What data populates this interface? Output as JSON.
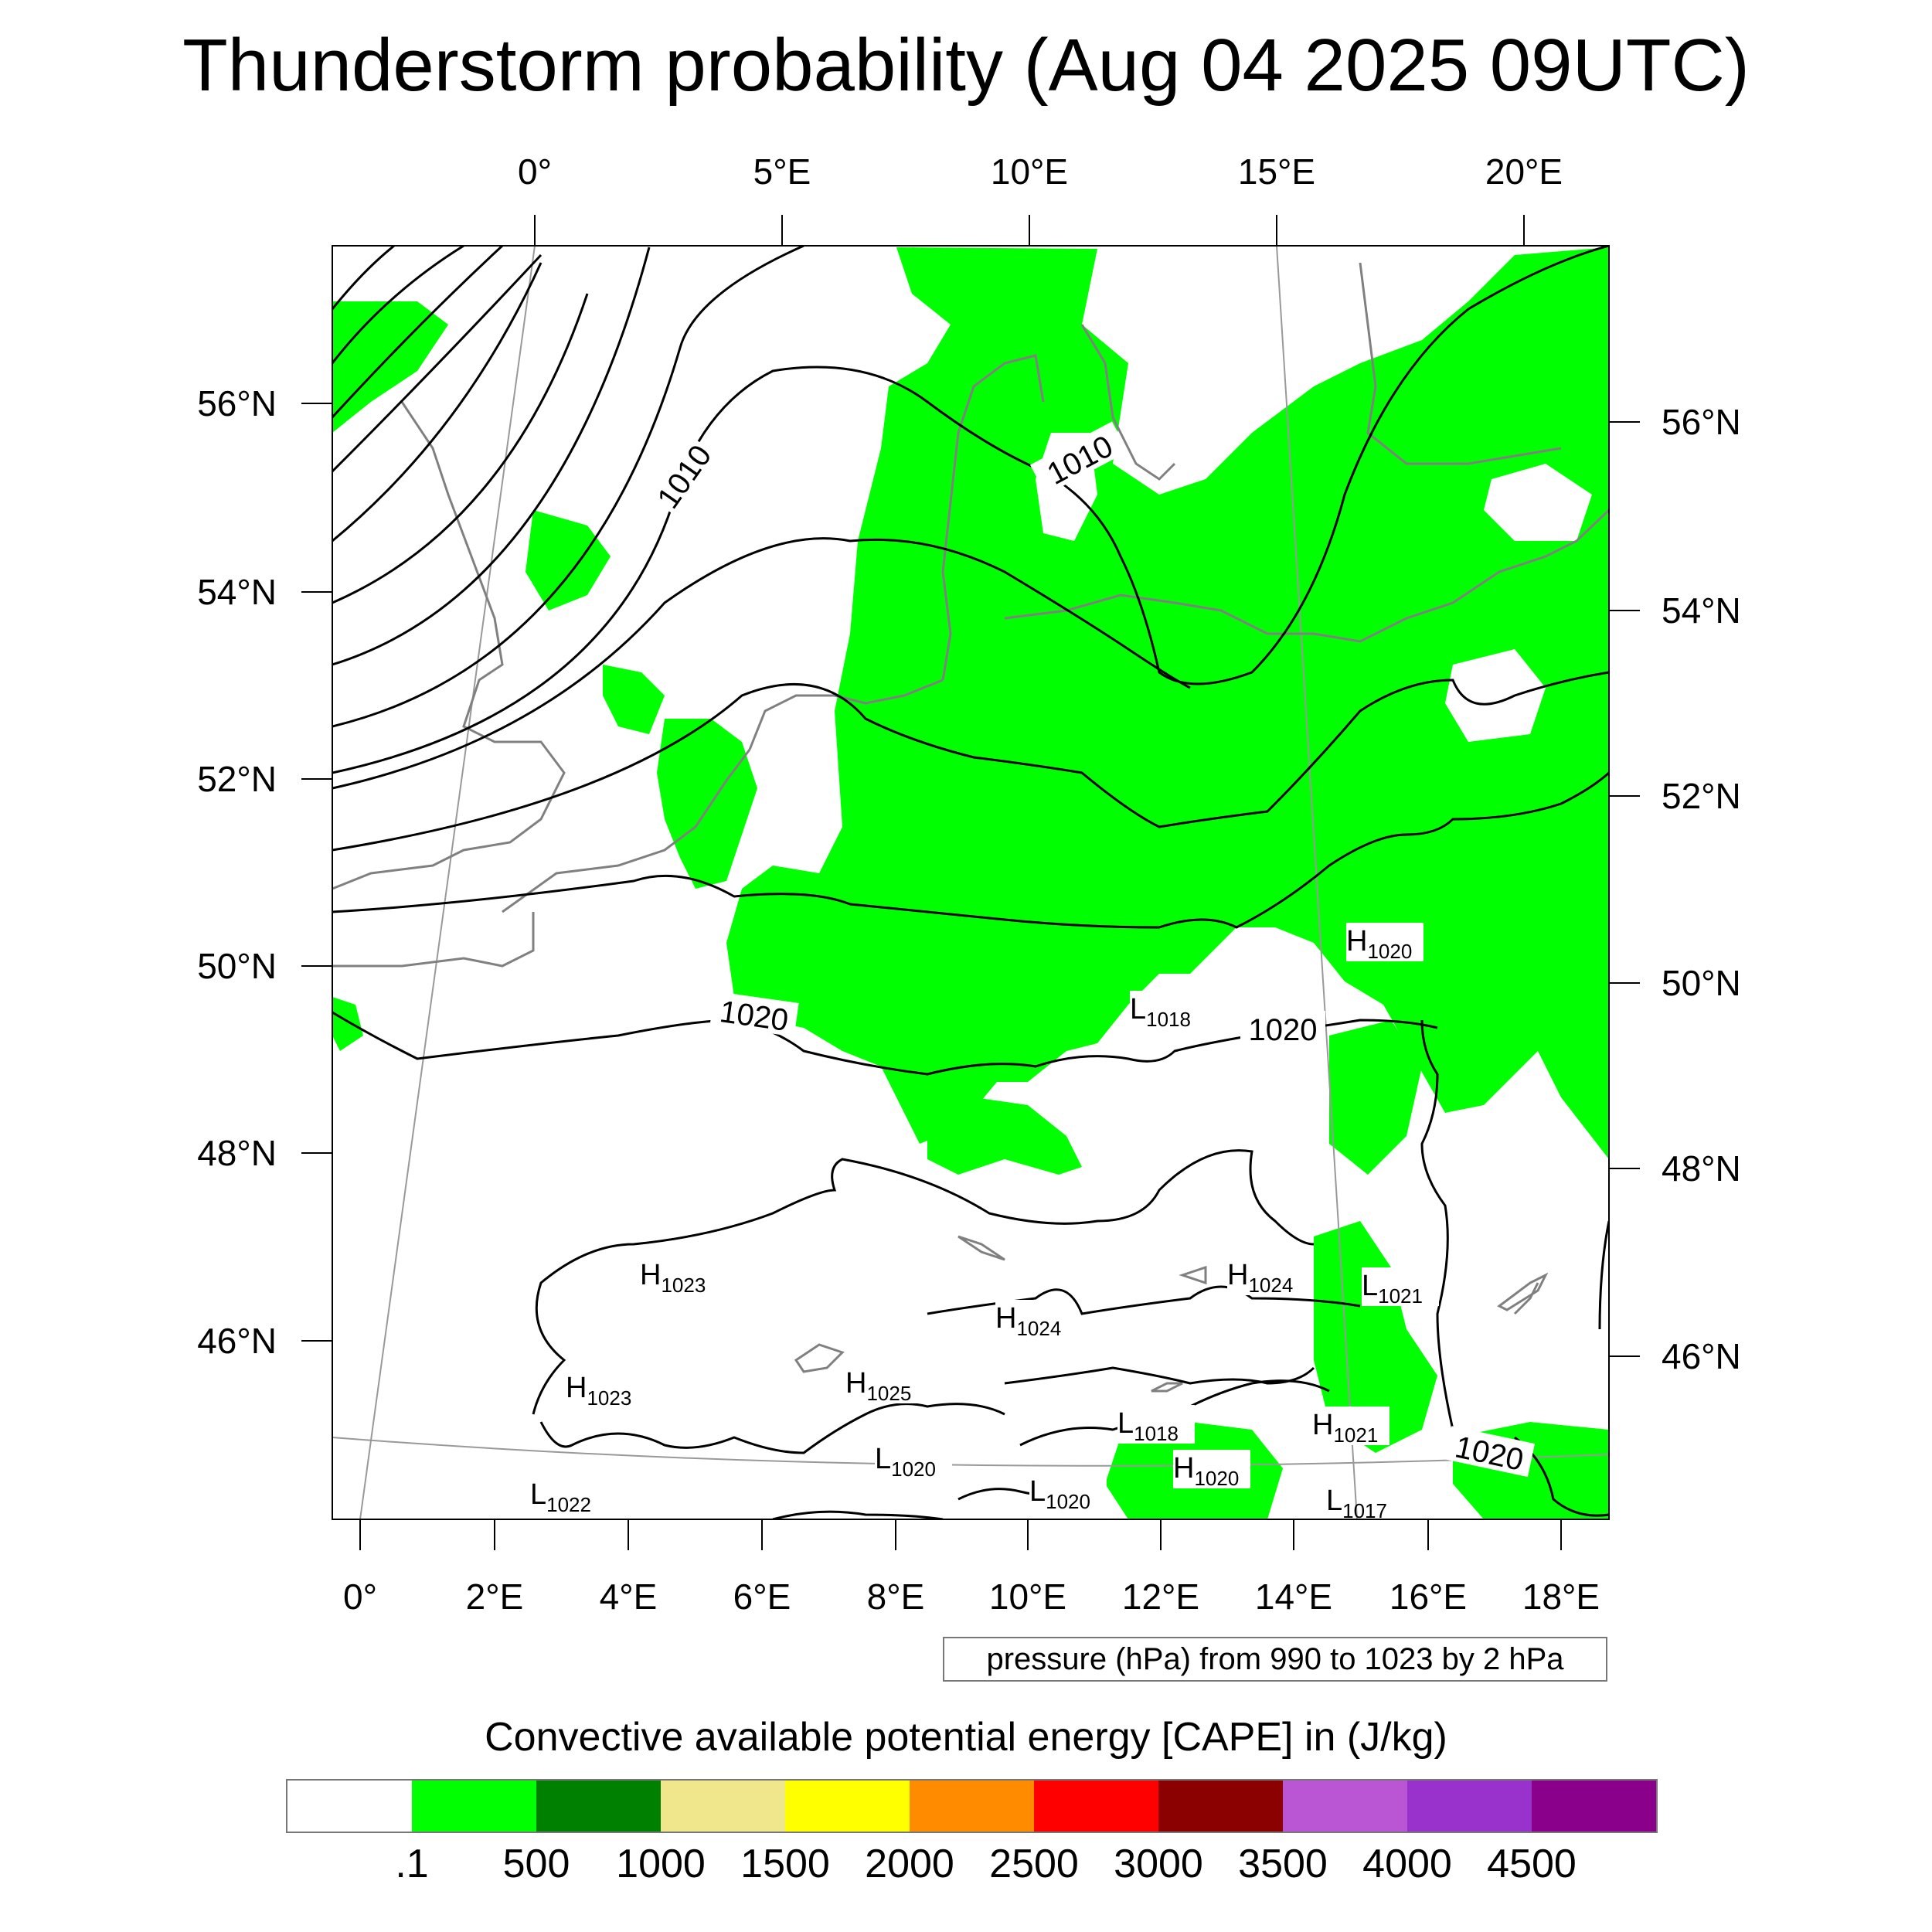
{
  "title": "Thunderstorm probability (Aug 04 2025 09UTC)",
  "top_lon_labels": [
    "0°",
    "5°E",
    "10°E",
    "15°E",
    "20°E"
  ],
  "bottom_lon_labels": [
    "0°",
    "2°E",
    "4°E",
    "6°E",
    "8°E",
    "10°E",
    "12°E",
    "14°E",
    "16°E",
    "18°E"
  ],
  "left_lat_labels": [
    "56°N",
    "54°N",
    "52°N",
    "50°N",
    "48°N",
    "46°N"
  ],
  "right_lat_labels": [
    "56°N",
    "54°N",
    "52°N",
    "50°N",
    "48°N",
    "46°N"
  ],
  "contour_labels": [
    "1010",
    "1010",
    "1020",
    "1020",
    "1020"
  ],
  "pressure_centers": [
    {
      "type": "H",
      "value": "1020"
    },
    {
      "type": "L",
      "value": "1018"
    },
    {
      "type": "H",
      "value": "1023"
    },
    {
      "type": "H",
      "value": "1024"
    },
    {
      "type": "L",
      "value": "1021"
    },
    {
      "type": "H",
      "value": "1024"
    },
    {
      "type": "H",
      "value": "1023"
    },
    {
      "type": "H",
      "value": "1025"
    },
    {
      "type": "L",
      "value": "1018"
    },
    {
      "type": "H",
      "value": "1021"
    },
    {
      "type": "L",
      "value": "1020"
    },
    {
      "type": "H",
      "value": "1020"
    },
    {
      "type": "L",
      "value": "1020"
    },
    {
      "type": "L",
      "value": "1022"
    },
    {
      "type": "L",
      "value": "1017"
    }
  ],
  "contour_info": "pressure (hPa) from 990 to 1023 by 2 hPa",
  "colorbar": {
    "title": "Convective available potential energy [CAPE] in (J/kg)",
    "colors": [
      "#ffffff",
      "#00ff00",
      "#008000",
      "#f0e68c",
      "#ffff00",
      "#ff8c00",
      "#ff0000",
      "#8b0000",
      "#ba55d3",
      "#9932cc",
      "#8b008b"
    ],
    "labels": [
      ".1",
      "500",
      "1000",
      "1500",
      "2000",
      "2500",
      "3000",
      "3500",
      "4000",
      "4500"
    ]
  },
  "colors": {
    "cape_fill": "#00ff00",
    "isobar": "#000000",
    "coastline": "#808080"
  }
}
